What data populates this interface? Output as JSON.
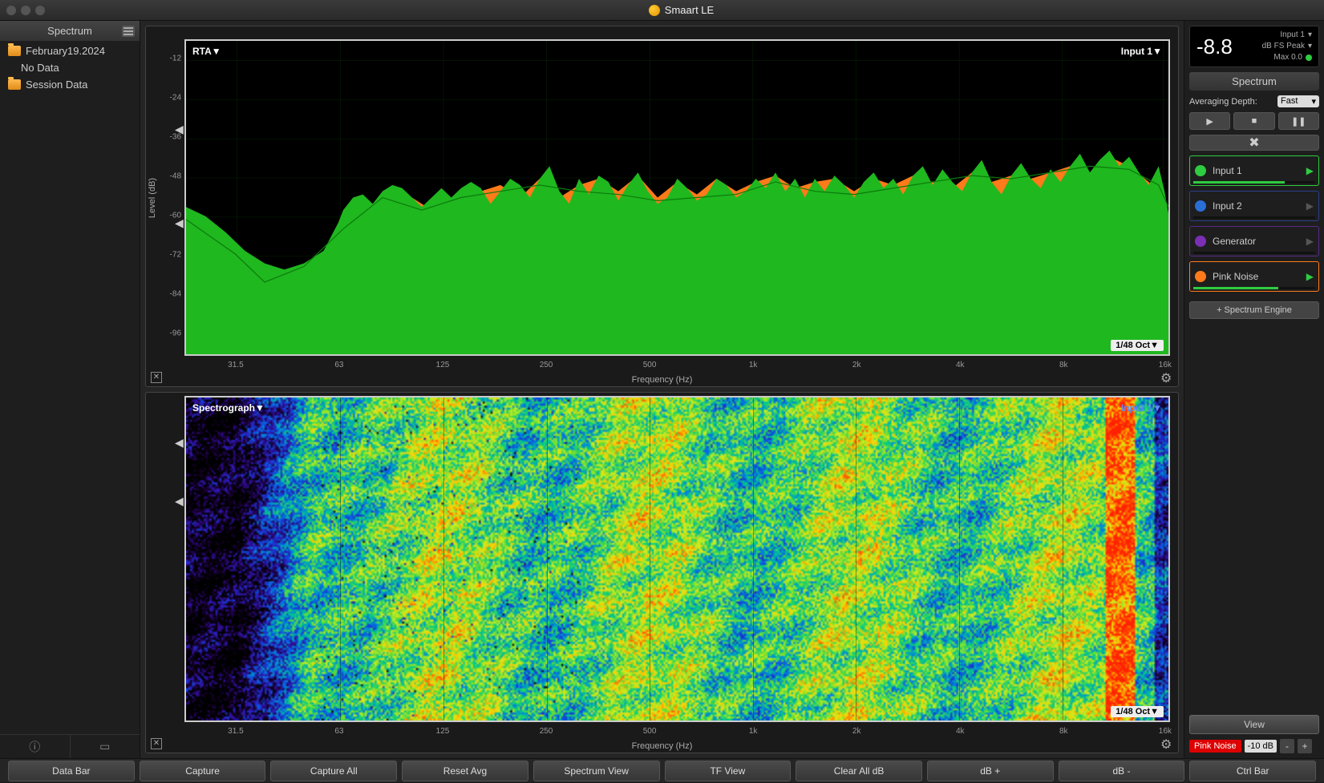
{
  "app": {
    "title": "Smaart LE"
  },
  "sidebar": {
    "title": "Spectrum",
    "items": [
      {
        "label": "February19.2024",
        "type": "folder"
      },
      {
        "label": "No Data",
        "type": "sub"
      },
      {
        "label": "Session Data",
        "type": "folder"
      }
    ]
  },
  "rta": {
    "title_left": "RTA▼",
    "title_right": "Input 1▼",
    "badge": "1/48 Oct▼",
    "ylabel": "Level (dB)",
    "xlabel": "Frequency (Hz)",
    "ylim": [
      -102,
      -6
    ],
    "yticks": [
      -12,
      -24,
      -36,
      -48,
      -60,
      -72,
      -84,
      -96
    ],
    "xticks": [
      "31.5",
      "63",
      "125",
      "250",
      "500",
      "1k",
      "2k",
      "4k",
      "8k",
      "16k"
    ],
    "xtick_pos_pct": [
      5.2,
      15.7,
      26.2,
      36.7,
      47.2,
      57.7,
      68.2,
      78.7,
      89.2,
      99.5
    ],
    "grid_color": "#0a3d0a",
    "fg_color": "#1fb81f",
    "bg_color": "#ff7a1a",
    "line_color": "#0c7a0c",
    "fg_points": [
      [
        0,
        53
      ],
      [
        2,
        56
      ],
      [
        4,
        61
      ],
      [
        6,
        67
      ],
      [
        8,
        71
      ],
      [
        10,
        73
      ],
      [
        12,
        71
      ],
      [
        14,
        67
      ],
      [
        15.5,
        58
      ],
      [
        16,
        54
      ],
      [
        17,
        50
      ],
      [
        18,
        49
      ],
      [
        19,
        52
      ],
      [
        20,
        48
      ],
      [
        21,
        46
      ],
      [
        22,
        47
      ],
      [
        23,
        50
      ],
      [
        24,
        53
      ],
      [
        25,
        50
      ],
      [
        26,
        47
      ],
      [
        27,
        50
      ],
      [
        28,
        47
      ],
      [
        29,
        45
      ],
      [
        30,
        47
      ],
      [
        31,
        52
      ],
      [
        32,
        48
      ],
      [
        33,
        44
      ],
      [
        34,
        46
      ],
      [
        35,
        50
      ],
      [
        36,
        44
      ],
      [
        37,
        40
      ],
      [
        38,
        48
      ],
      [
        39,
        52
      ],
      [
        40,
        44
      ],
      [
        41,
        49
      ],
      [
        42,
        43
      ],
      [
        43,
        45
      ],
      [
        44,
        51
      ],
      [
        45,
        46
      ],
      [
        46,
        42
      ],
      [
        47,
        48
      ],
      [
        48,
        52
      ],
      [
        49,
        50
      ],
      [
        50,
        44
      ],
      [
        51,
        47
      ],
      [
        52,
        51
      ],
      [
        53,
        49
      ],
      [
        54,
        44
      ],
      [
        55,
        46
      ],
      [
        56,
        50
      ],
      [
        57,
        48
      ],
      [
        58,
        44
      ],
      [
        59,
        47
      ],
      [
        60,
        42
      ],
      [
        61,
        48
      ],
      [
        62,
        44
      ],
      [
        63,
        50
      ],
      [
        64,
        44
      ],
      [
        65,
        48
      ],
      [
        66,
        43
      ],
      [
        67,
        46
      ],
      [
        68,
        50
      ],
      [
        69,
        45
      ],
      [
        70,
        42
      ],
      [
        71,
        47
      ],
      [
        72,
        44
      ],
      [
        73,
        49
      ],
      [
        74,
        43
      ],
      [
        75,
        40
      ],
      [
        76,
        46
      ],
      [
        77,
        41
      ],
      [
        78,
        45
      ],
      [
        79,
        48
      ],
      [
        80,
        42
      ],
      [
        81,
        38
      ],
      [
        82,
        45
      ],
      [
        83,
        49
      ],
      [
        84,
        43
      ],
      [
        85,
        39
      ],
      [
        86,
        44
      ],
      [
        87,
        47
      ],
      [
        88,
        41
      ],
      [
        89,
        45
      ],
      [
        90,
        40
      ],
      [
        91,
        36
      ],
      [
        92,
        42
      ],
      [
        93,
        38
      ],
      [
        94,
        35
      ],
      [
        95,
        40
      ],
      [
        96,
        37
      ],
      [
        97,
        42
      ],
      [
        98,
        46
      ],
      [
        99,
        40
      ],
      [
        99.6,
        48
      ],
      [
        100,
        55
      ]
    ],
    "bg_points": [
      [
        0,
        58
      ],
      [
        2,
        62
      ],
      [
        4,
        68
      ],
      [
        6,
        76
      ],
      [
        8,
        82
      ],
      [
        10,
        80
      ],
      [
        12,
        75
      ],
      [
        14,
        70
      ],
      [
        16,
        62
      ],
      [
        18,
        54
      ],
      [
        20,
        50
      ],
      [
        22,
        48
      ],
      [
        24,
        52
      ],
      [
        26,
        56
      ],
      [
        28,
        52
      ],
      [
        30,
        48
      ],
      [
        32,
        46
      ],
      [
        34,
        50
      ],
      [
        36,
        44
      ],
      [
        38,
        50
      ],
      [
        40,
        46
      ],
      [
        42,
        44
      ],
      [
        44,
        48
      ],
      [
        46,
        43
      ],
      [
        48,
        50
      ],
      [
        50,
        45
      ],
      [
        52,
        49
      ],
      [
        54,
        44
      ],
      [
        56,
        48
      ],
      [
        58,
        45
      ],
      [
        60,
        43
      ],
      [
        62,
        47
      ],
      [
        64,
        45
      ],
      [
        66,
        44
      ],
      [
        68,
        48
      ],
      [
        70,
        44
      ],
      [
        72,
        46
      ],
      [
        74,
        43
      ],
      [
        76,
        45
      ],
      [
        78,
        47
      ],
      [
        80,
        42
      ],
      [
        82,
        45
      ],
      [
        84,
        43
      ],
      [
        86,
        44
      ],
      [
        88,
        42
      ],
      [
        90,
        40
      ],
      [
        92,
        42
      ],
      [
        94,
        37
      ],
      [
        96,
        40
      ],
      [
        98,
        45
      ],
      [
        99.5,
        50
      ],
      [
        100,
        56
      ]
    ],
    "line_points": [
      [
        0,
        57
      ],
      [
        5,
        68
      ],
      [
        8,
        77
      ],
      [
        12,
        72
      ],
      [
        16,
        60
      ],
      [
        20,
        50
      ],
      [
        24,
        54
      ],
      [
        28,
        50
      ],
      [
        32,
        48
      ],
      [
        36,
        46
      ],
      [
        40,
        48
      ],
      [
        44,
        49
      ],
      [
        48,
        51
      ],
      [
        52,
        50
      ],
      [
        56,
        49
      ],
      [
        60,
        45
      ],
      [
        64,
        48
      ],
      [
        68,
        49
      ],
      [
        72,
        47
      ],
      [
        76,
        45
      ],
      [
        80,
        43
      ],
      [
        84,
        44
      ],
      [
        88,
        42
      ],
      [
        92,
        40
      ],
      [
        96,
        41
      ],
      [
        99,
        46
      ],
      [
        100,
        53
      ]
    ]
  },
  "spectrograph": {
    "title_left": "Spectrograph▼",
    "title_right": "Input 1▼",
    "badge": "1/48 Oct▼",
    "xlabel": "Frequency (Hz)",
    "xticks": [
      "31.5",
      "63",
      "125",
      "250",
      "500",
      "1k",
      "2k",
      "4k",
      "8k",
      "16k"
    ],
    "xtick_pos_pct": [
      5.2,
      15.7,
      26.2,
      36.7,
      47.2,
      57.7,
      68.2,
      78.7,
      89.2,
      99.5
    ],
    "colormap": [
      "#000000",
      "#1a0033",
      "#3311aa",
      "#1144dd",
      "#0088dd",
      "#00cc88",
      "#66dd33",
      "#ccee22",
      "#ffcc00",
      "#ff6600",
      "#ff2200"
    ]
  },
  "meter": {
    "reading": "-8.8",
    "input_label": "Input 1",
    "scale_label": "dB FS Peak",
    "max_label": "Max 0.0",
    "max_dot_color": "#2ecc40"
  },
  "right": {
    "section_title": "Spectrum",
    "avg_label": "Averaging Depth:",
    "avg_value": "Fast",
    "engines": [
      {
        "label": "Input 1",
        "dot": "#2ecc40",
        "border": "#2ecc40",
        "play": "#2ecc40",
        "level_pct": 75,
        "level_color": "#2ecc40"
      },
      {
        "label": "Input 2",
        "dot": "#2a6fd6",
        "border": "#2a3f8a",
        "play": "#555",
        "level_pct": 0,
        "level_color": "#333"
      },
      {
        "label": "Generator",
        "dot": "#7b2fb5",
        "border": "#5a2a8a",
        "play": "#555",
        "level_pct": 0,
        "level_color": "#333"
      },
      {
        "label": "Pink Noise",
        "dot": "#ff7a1a",
        "border": "#ff7a1a",
        "play": "#2ecc40",
        "level_pct": 70,
        "level_color": "#2ecc40"
      }
    ],
    "add_label": "+ Spectrum Engine",
    "view_label": "View",
    "gen_label": "Pink Noise",
    "gen_db": "-10 dB"
  },
  "bottom": {
    "buttons": [
      "Data Bar",
      "Capture",
      "Capture All",
      "Reset Avg",
      "Spectrum View",
      "TF View",
      "Clear All dB",
      "dB +",
      "dB -",
      "Ctrl Bar"
    ]
  }
}
